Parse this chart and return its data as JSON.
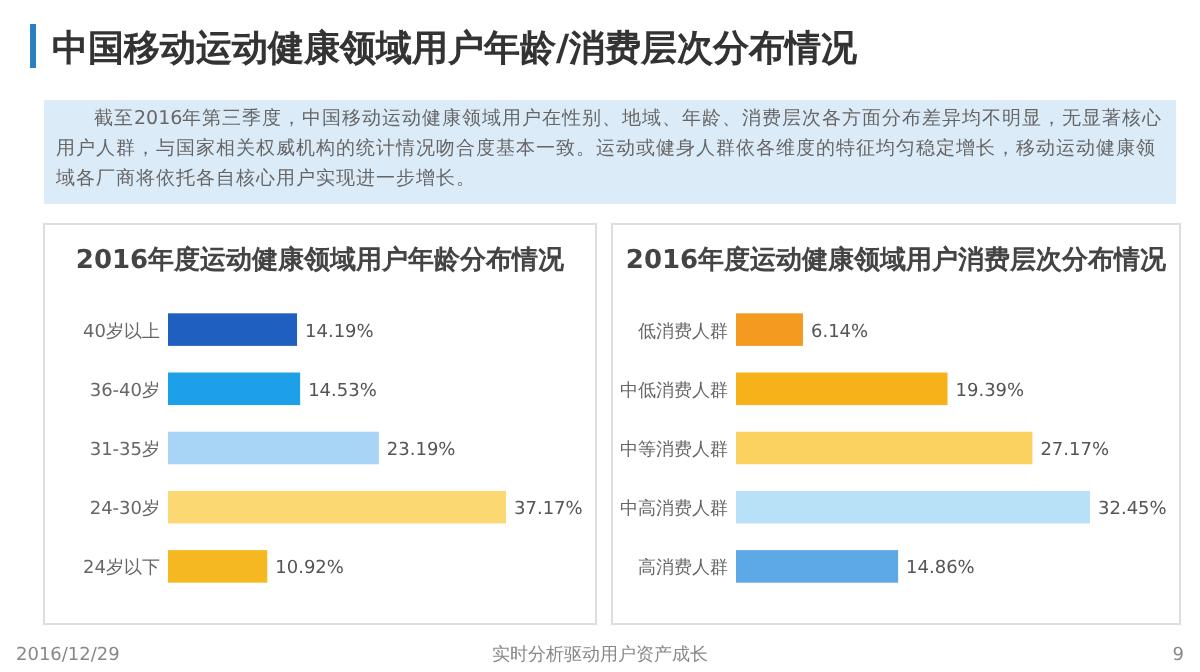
{
  "chart_data": [
    {
      "type": "other",
      "title": "中国移动运动健康领域用户年龄/消费层次分布情况",
      "annotations": [
        "截至2016年第三季度，中国移动运动健康领域用户在性别、地域、年龄、消费层次各方面分布差异均不明显，无显著核心用户人群，与国家相关权威机构的统计情况吻合度基本一致。运动或健身人群依各维度的特征均匀稳定增长，移动运动健康领域各厂商将依托各自核心用户实现进一步增长。",
        "2016/12/29",
        "实时分析驱动用户资产成长",
        "9"
      ]
    },
    {
      "type": "bar",
      "orientation": "horizontal",
      "title": "2016年度运动健康领域用户年龄分布情况",
      "categories": [
        "40岁以上",
        "36-40岁",
        "31-35岁",
        "24-30岁",
        "24岁以下"
      ],
      "values": [
        14.19,
        14.53,
        23.19,
        37.17,
        10.92
      ],
      "value_labels": [
        "14.19%",
        "14.53%",
        "23.19%",
        "37.17%",
        "10.92%"
      ],
      "colors": [
        "#1f5fbf",
        "#1ea0e8",
        "#a8d4f5",
        "#fbd871",
        "#f5b820"
      ]
    },
    {
      "type": "bar",
      "orientation": "horizontal",
      "title": "2016年度运动健康领域用户消费层次分布情况",
      "categories": [
        "低消费人群",
        "中低消费人群",
        "中等消费人群",
        "中高消费人群",
        "高消费人群"
      ],
      "values": [
        6.14,
        19.39,
        27.17,
        32.45,
        14.86
      ],
      "value_labels": [
        "6.14%",
        "19.39%",
        "27.17%",
        "32.45%",
        "14.86%"
      ],
      "colors": [
        "#f39a1f",
        "#f7b21a",
        "#fbd160",
        "#b8e0f7",
        "#5da9e8"
      ]
    }
  ]
}
